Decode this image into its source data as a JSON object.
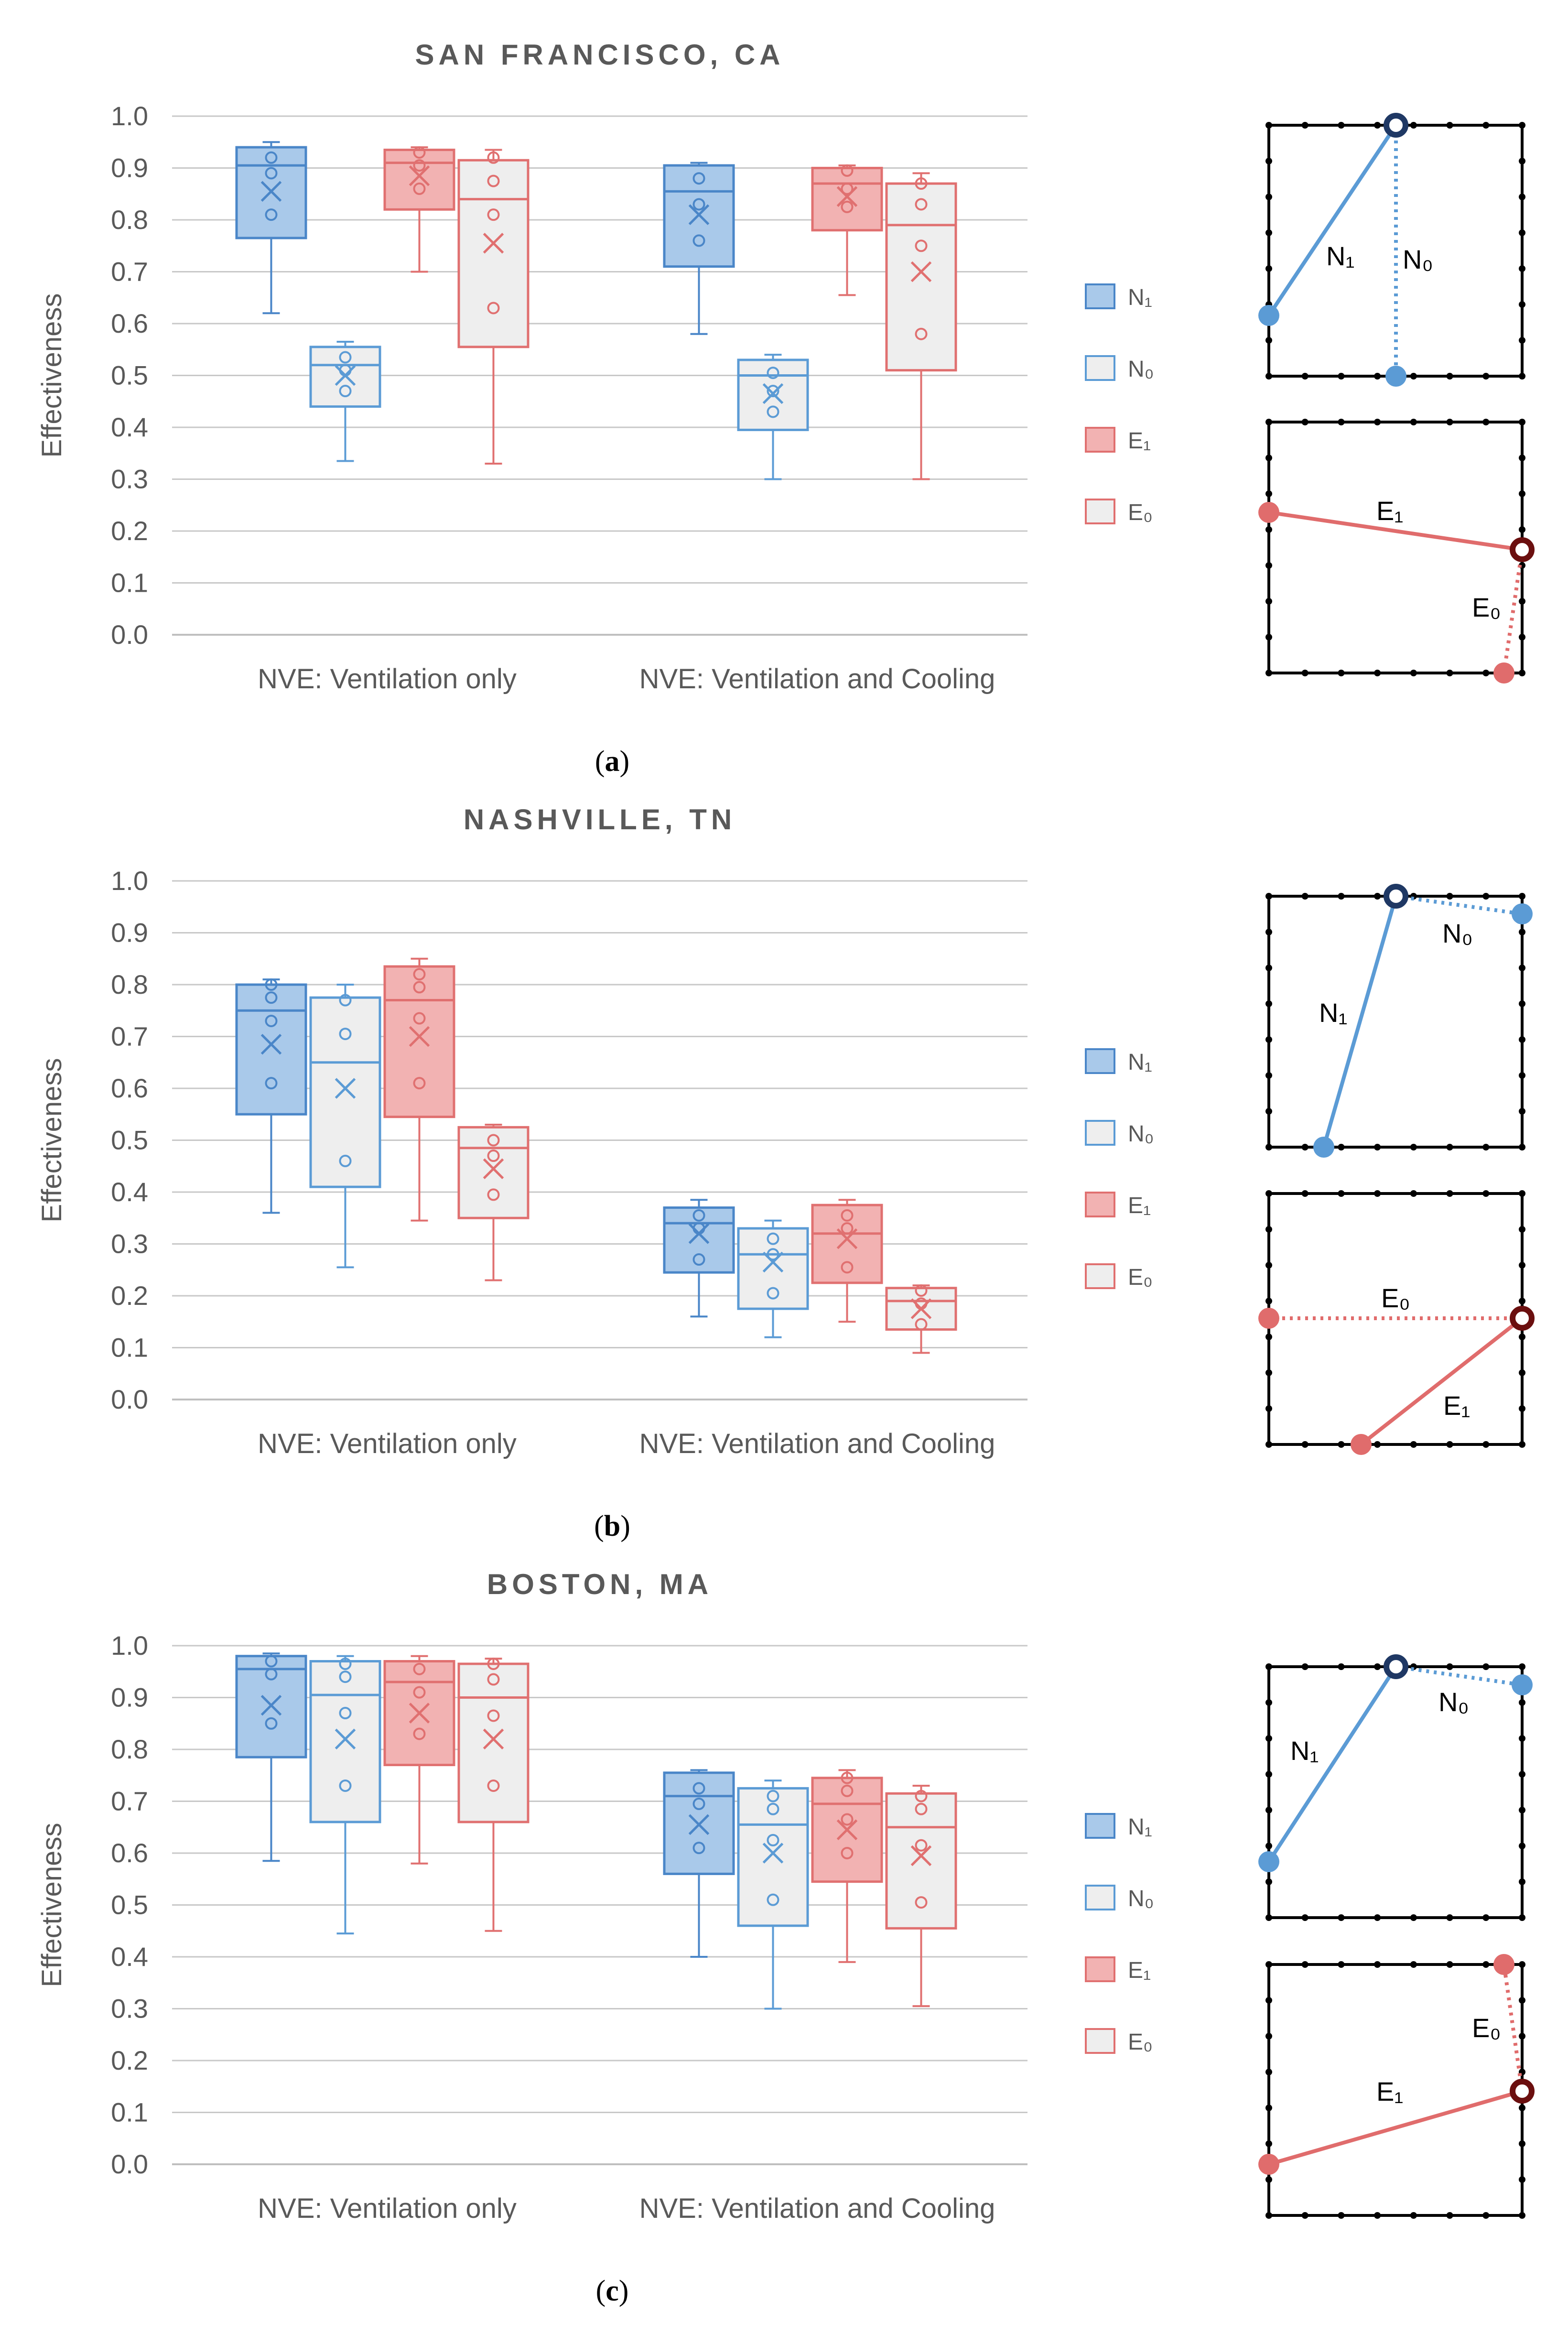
{
  "colors": {
    "n1_fill": "#a9c9ea",
    "n1_stroke": "#4a86c8",
    "n0_fill": "#eeeeee",
    "n0_stroke": "#5b9bd5",
    "e1_fill": "#f2b2b2",
    "e1_stroke": "#e07070",
    "e0_fill": "#eeeeee",
    "e0_stroke": "#e07070",
    "grid": "#c8c8c8",
    "axis_text": "#595959",
    "diag_blue": "#5b9bd5",
    "diag_blue_dark": "#1f3864",
    "diag_red": "#e06c6c",
    "diag_red_dark": "#6b0f0f"
  },
  "legend": [
    "N₁",
    "N₀",
    "E₁",
    "E₀"
  ],
  "diagram_labels": {
    "N1": "N₁",
    "N0": "N₀",
    "E1": "E₁",
    "E0": "E₀"
  },
  "chart_data": [
    {
      "type": "box",
      "title": "SAN FRANCISCO, CA",
      "caption_letter": "a",
      "ylabel": "Effectiveness",
      "ylim": [
        0,
        1
      ],
      "yticks": [
        "0.0",
        "0.1",
        "0.2",
        "0.3",
        "0.4",
        "0.5",
        "0.6",
        "0.7",
        "0.8",
        "0.9",
        "1.0"
      ],
      "categories": [
        "NVE: Ventilation only",
        "NVE: Ventilation and Cooling"
      ],
      "series": [
        {
          "name": "N₁",
          "boxes": [
            {
              "min": 0.62,
              "q1": 0.765,
              "median": 0.905,
              "q3": 0.94,
              "max": 0.95,
              "mean": 0.855,
              "points": [
                0.81,
                0.89,
                0.92
              ]
            },
            {
              "min": 0.58,
              "q1": 0.71,
              "median": 0.855,
              "q3": 0.905,
              "max": 0.91,
              "mean": 0.81,
              "points": [
                0.76,
                0.83,
                0.88
              ]
            }
          ]
        },
        {
          "name": "N₀",
          "boxes": [
            {
              "min": 0.335,
              "q1": 0.44,
              "median": 0.52,
              "q3": 0.555,
              "max": 0.565,
              "mean": 0.5,
              "points": [
                0.47,
                0.51,
                0.535
              ]
            },
            {
              "min": 0.3,
              "q1": 0.395,
              "median": 0.5,
              "q3": 0.53,
              "max": 0.54,
              "mean": 0.465,
              "points": [
                0.43,
                0.47,
                0.505
              ]
            }
          ]
        },
        {
          "name": "E₁",
          "boxes": [
            {
              "min": 0.7,
              "q1": 0.82,
              "median": 0.91,
              "q3": 0.935,
              "max": 0.94,
              "mean": 0.885,
              "points": [
                0.86,
                0.905,
                0.93
              ]
            },
            {
              "min": 0.655,
              "q1": 0.78,
              "median": 0.87,
              "q3": 0.9,
              "max": 0.905,
              "mean": 0.845,
              "points": [
                0.825,
                0.86,
                0.895
              ]
            }
          ]
        },
        {
          "name": "E₀",
          "boxes": [
            {
              "min": 0.33,
              "q1": 0.555,
              "median": 0.84,
              "q3": 0.915,
              "max": 0.935,
              "mean": 0.755,
              "points": [
                0.63,
                0.81,
                0.875,
                0.92
              ]
            },
            {
              "min": 0.3,
              "q1": 0.51,
              "median": 0.79,
              "q3": 0.87,
              "max": 0.89,
              "mean": 0.7,
              "points": [
                0.58,
                0.75,
                0.83,
                0.87
              ]
            }
          ]
        }
      ]
    },
    {
      "type": "box",
      "title": "NASHVILLE, TN",
      "caption_letter": "b",
      "ylabel": "Effectiveness",
      "ylim": [
        0,
        1
      ],
      "yticks": [
        "0.0",
        "0.1",
        "0.2",
        "0.3",
        "0.4",
        "0.5",
        "0.6",
        "0.7",
        "0.8",
        "0.9",
        "1.0"
      ],
      "categories": [
        "NVE: Ventilation only",
        "NVE: Ventilation and Cooling"
      ],
      "series": [
        {
          "name": "N₁",
          "boxes": [
            {
              "min": 0.36,
              "q1": 0.55,
              "median": 0.75,
              "q3": 0.8,
              "max": 0.81,
              "mean": 0.685,
              "points": [
                0.61,
                0.73,
                0.775,
                0.8
              ]
            },
            {
              "min": 0.16,
              "q1": 0.245,
              "median": 0.34,
              "q3": 0.37,
              "max": 0.385,
              "mean": 0.32,
              "points": [
                0.27,
                0.33,
                0.355
              ]
            }
          ]
        },
        {
          "name": "N₀",
          "boxes": [
            {
              "min": 0.255,
              "q1": 0.41,
              "median": 0.65,
              "q3": 0.775,
              "max": 0.8,
              "mean": 0.6,
              "points": [
                0.46,
                0.705,
                0.77
              ]
            },
            {
              "min": 0.12,
              "q1": 0.175,
              "median": 0.28,
              "q3": 0.33,
              "max": 0.345,
              "mean": 0.265,
              "points": [
                0.205,
                0.28,
                0.31
              ]
            }
          ]
        },
        {
          "name": "E₁",
          "boxes": [
            {
              "min": 0.345,
              "q1": 0.545,
              "median": 0.77,
              "q3": 0.835,
              "max": 0.85,
              "mean": 0.7,
              "points": [
                0.61,
                0.735,
                0.795,
                0.82
              ]
            },
            {
              "min": 0.15,
              "q1": 0.225,
              "median": 0.32,
              "q3": 0.375,
              "max": 0.385,
              "mean": 0.31,
              "points": [
                0.255,
                0.33,
                0.355
              ]
            }
          ]
        },
        {
          "name": "E₀",
          "boxes": [
            {
              "min": 0.23,
              "q1": 0.35,
              "median": 0.485,
              "q3": 0.525,
              "max": 0.53,
              "mean": 0.445,
              "points": [
                0.395,
                0.47,
                0.5
              ]
            },
            {
              "min": 0.09,
              "q1": 0.135,
              "median": 0.19,
              "q3": 0.215,
              "max": 0.22,
              "mean": 0.175,
              "points": [
                0.145,
                0.185,
                0.21
              ]
            }
          ]
        }
      ]
    },
    {
      "type": "box",
      "title": "BOSTON, MA",
      "caption_letter": "c",
      "ylabel": "Effectiveness",
      "ylim": [
        0,
        1
      ],
      "yticks": [
        "0.0",
        "0.1",
        "0.2",
        "0.3",
        "0.4",
        "0.5",
        "0.6",
        "0.7",
        "0.8",
        "0.9",
        "1.0"
      ],
      "categories": [
        "NVE: Ventilation only",
        "NVE: Ventilation and Cooling"
      ],
      "series": [
        {
          "name": "N₁",
          "boxes": [
            {
              "min": 0.585,
              "q1": 0.785,
              "median": 0.955,
              "q3": 0.98,
              "max": 0.985,
              "mean": 0.885,
              "points": [
                0.85,
                0.945,
                0.97
              ]
            },
            {
              "min": 0.4,
              "q1": 0.56,
              "median": 0.71,
              "q3": 0.755,
              "max": 0.76,
              "mean": 0.655,
              "points": [
                0.61,
                0.695,
                0.725
              ]
            }
          ]
        },
        {
          "name": "N₀",
          "boxes": [
            {
              "min": 0.445,
              "q1": 0.66,
              "median": 0.905,
              "q3": 0.97,
              "max": 0.98,
              "mean": 0.82,
              "points": [
                0.73,
                0.87,
                0.94,
                0.965
              ]
            },
            {
              "min": 0.3,
              "q1": 0.46,
              "median": 0.655,
              "q3": 0.725,
              "max": 0.74,
              "mean": 0.6,
              "points": [
                0.51,
                0.625,
                0.685,
                0.71
              ]
            }
          ]
        },
        {
          "name": "E₁",
          "boxes": [
            {
              "min": 0.58,
              "q1": 0.77,
              "median": 0.93,
              "q3": 0.97,
              "max": 0.98,
              "mean": 0.87,
              "points": [
                0.83,
                0.91,
                0.955
              ]
            },
            {
              "min": 0.39,
              "q1": 0.545,
              "median": 0.695,
              "q3": 0.745,
              "max": 0.76,
              "mean": 0.645,
              "points": [
                0.6,
                0.665,
                0.72,
                0.745
              ]
            }
          ]
        },
        {
          "name": "E₀",
          "boxes": [
            {
              "min": 0.45,
              "q1": 0.66,
              "median": 0.9,
              "q3": 0.965,
              "max": 0.975,
              "mean": 0.82,
              "points": [
                0.73,
                0.865,
                0.935,
                0.965
              ]
            },
            {
              "min": 0.305,
              "q1": 0.455,
              "median": 0.65,
              "q3": 0.715,
              "max": 0.73,
              "mean": 0.595,
              "points": [
                0.505,
                0.615,
                0.685,
                0.71
              ]
            }
          ]
        }
      ]
    }
  ]
}
